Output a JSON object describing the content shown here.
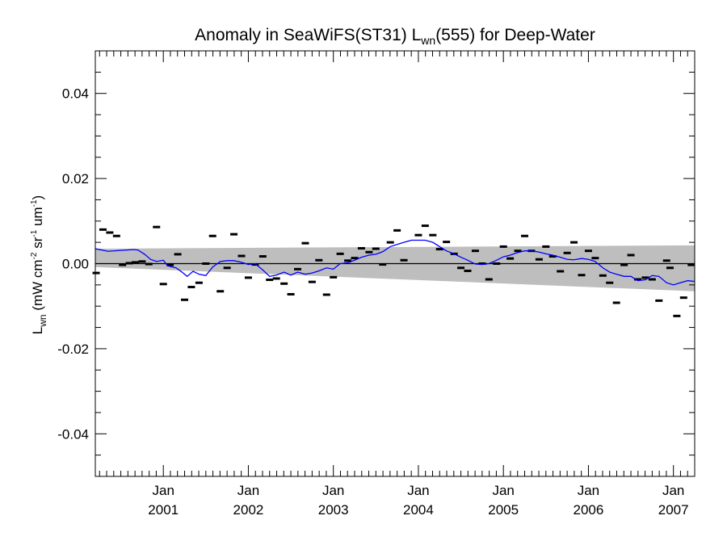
{
  "chart_data": {
    "type": "scatter",
    "title": {
      "prefix": "Anomaly in SeaWiFS(ST31) L",
      "sub": "wn",
      "suffix": "(555) for Deep-Water"
    },
    "ylabel": {
      "prefix": "L",
      "sub": "wn",
      "unit_open": " (mW cm",
      "sup1": "-2",
      "unit_mid": " sr",
      "sup2": "-1",
      "unit_mid2": " um",
      "sup3": "-1",
      "unit_close": ")"
    },
    "xlim": [
      2000.2,
      2007.25
    ],
    "ylim": [
      -0.05,
      0.05
    ],
    "y_ticks": [
      {
        "value": 0.04,
        "label": "0.04"
      },
      {
        "value": 0.02,
        "label": "0.02"
      },
      {
        "value": 0.0,
        "label": "0.00"
      },
      {
        "value": -0.02,
        "label": "-0.02"
      },
      {
        "value": -0.04,
        "label": "-0.04"
      }
    ],
    "x_ticks": [
      {
        "value": 2001.0,
        "month": "Jan",
        "year": "2001"
      },
      {
        "value": 2002.0,
        "month": "Jan",
        "year": "2002"
      },
      {
        "value": 2003.0,
        "month": "Jan",
        "year": "2003"
      },
      {
        "value": 2004.0,
        "month": "Jan",
        "year": "2004"
      },
      {
        "value": 2005.0,
        "month": "Jan",
        "year": "2005"
      },
      {
        "value": 2006.0,
        "month": "Jan",
        "year": "2006"
      },
      {
        "value": 2007.0,
        "month": "Jan",
        "year": "2007"
      }
    ],
    "zero_line": 0.0,
    "band": {
      "upper": [
        [
          2000.2,
          0.0035
        ],
        [
          2007.25,
          0.0043
        ]
      ],
      "lower": [
        [
          2000.2,
          -0.0008
        ],
        [
          2007.25,
          -0.0065
        ]
      ]
    },
    "points": [
      [
        2000.21,
        -0.0022
      ],
      [
        2000.29,
        0.008
      ],
      [
        2000.37,
        0.0073
      ],
      [
        2000.45,
        0.0065
      ],
      [
        2000.52,
        -0.0003
      ],
      [
        2000.6,
        0.0001
      ],
      [
        2000.67,
        0.0003
      ],
      [
        2000.75,
        0.0005
      ],
      [
        2000.83,
        -0.0001
      ],
      [
        2000.92,
        0.0086
      ],
      [
        2001.0,
        -0.0048
      ],
      [
        2001.08,
        -0.0003
      ],
      [
        2001.17,
        0.0022
      ],
      [
        2001.25,
        -0.0085
      ],
      [
        2001.33,
        -0.0055
      ],
      [
        2001.42,
        -0.0045
      ],
      [
        2001.5,
        0.0
      ],
      [
        2001.58,
        0.0065
      ],
      [
        2001.67,
        -0.0065
      ],
      [
        2001.75,
        -0.001
      ],
      [
        2001.83,
        0.0069
      ],
      [
        2001.92,
        0.0018
      ],
      [
        2002.0,
        -0.0033
      ],
      [
        2002.08,
        -0.0002
      ],
      [
        2002.17,
        0.0017
      ],
      [
        2002.25,
        -0.0038
      ],
      [
        2002.33,
        -0.0035
      ],
      [
        2002.42,
        -0.0047
      ],
      [
        2002.5,
        -0.0072
      ],
      [
        2002.58,
        -0.0013
      ],
      [
        2002.67,
        0.0048
      ],
      [
        2002.75,
        -0.0043
      ],
      [
        2002.83,
        0.0008
      ],
      [
        2002.92,
        -0.0073
      ],
      [
        2003.0,
        -0.0032
      ],
      [
        2003.08,
        0.0023
      ],
      [
        2003.17,
        0.0007
      ],
      [
        2003.25,
        0.0013
      ],
      [
        2003.33,
        0.0036
      ],
      [
        2003.42,
        0.0027
      ],
      [
        2003.5,
        0.0035
      ],
      [
        2003.58,
        -0.0002
      ],
      [
        2003.67,
        0.005
      ],
      [
        2003.75,
        0.0078
      ],
      [
        2003.83,
        0.0008
      ],
      [
        2004.0,
        0.0067
      ],
      [
        2004.08,
        0.0089
      ],
      [
        2004.17,
        0.0067
      ],
      [
        2004.25,
        0.0034
      ],
      [
        2004.33,
        0.0051
      ],
      [
        2004.42,
        0.0023
      ],
      [
        2004.5,
        -0.001
      ],
      [
        2004.58,
        -0.0017
      ],
      [
        2004.67,
        0.003
      ],
      [
        2004.75,
        0.0
      ],
      [
        2004.83,
        -0.0037
      ],
      [
        2004.92,
        0.0
      ],
      [
        2005.0,
        0.004
      ],
      [
        2005.08,
        0.0012
      ],
      [
        2005.17,
        0.003
      ],
      [
        2005.25,
        0.0065
      ],
      [
        2005.33,
        0.003
      ],
      [
        2005.42,
        0.001
      ],
      [
        2005.5,
        0.004
      ],
      [
        2005.58,
        0.0017
      ],
      [
        2005.67,
        -0.0018
      ],
      [
        2005.75,
        0.0025
      ],
      [
        2005.83,
        0.005
      ],
      [
        2005.92,
        -0.0027
      ],
      [
        2006.0,
        0.003
      ],
      [
        2006.08,
        0.0013
      ],
      [
        2006.17,
        -0.0028
      ],
      [
        2006.25,
        -0.0045
      ],
      [
        2006.33,
        -0.0092
      ],
      [
        2006.42,
        -0.0003
      ],
      [
        2006.5,
        0.002
      ],
      [
        2006.58,
        -0.0037
      ],
      [
        2006.67,
        -0.0033
      ],
      [
        2006.75,
        -0.0037
      ],
      [
        2006.83,
        -0.0087
      ],
      [
        2006.92,
        0.0007
      ],
      [
        2006.96,
        -0.001
      ],
      [
        2007.04,
        -0.0123
      ],
      [
        2007.12,
        -0.008
      ],
      [
        2007.21,
        -0.0003
      ]
    ],
    "smooth_line": [
      [
        2000.2,
        0.0035
      ],
      [
        2000.35,
        0.0029
      ],
      [
        2000.5,
        0.0031
      ],
      [
        2000.65,
        0.0033
      ],
      [
        2000.7,
        0.0032
      ],
      [
        2000.78,
        0.0022
      ],
      [
        2000.85,
        0.001
      ],
      [
        2000.92,
        0.0005
      ],
      [
        2001.0,
        0.0008
      ],
      [
        2001.05,
        -0.0005
      ],
      [
        2001.15,
        -0.001
      ],
      [
        2001.22,
        -0.002
      ],
      [
        2001.28,
        -0.003
      ],
      [
        2001.35,
        -0.0018
      ],
      [
        2001.42,
        -0.0025
      ],
      [
        2001.5,
        -0.0028
      ],
      [
        2001.58,
        -0.0008
      ],
      [
        2001.67,
        0.0005
      ],
      [
        2001.75,
        0.0007
      ],
      [
        2001.83,
        0.0007
      ],
      [
        2001.92,
        0.0003
      ],
      [
        2002.0,
        -0.0002
      ],
      [
        2002.08,
        0.0
      ],
      [
        2002.17,
        -0.0015
      ],
      [
        2002.25,
        -0.003
      ],
      [
        2002.33,
        -0.0027
      ],
      [
        2002.42,
        -0.002
      ],
      [
        2002.5,
        -0.0027
      ],
      [
        2002.58,
        -0.002
      ],
      [
        2002.67,
        -0.0025
      ],
      [
        2002.75,
        -0.0022
      ],
      [
        2002.83,
        -0.0017
      ],
      [
        2002.92,
        -0.001
      ],
      [
        2003.0,
        -0.0013
      ],
      [
        2003.08,
        0.0
      ],
      [
        2003.17,
        0.0002
      ],
      [
        2003.25,
        0.0008
      ],
      [
        2003.33,
        0.0015
      ],
      [
        2003.42,
        0.002
      ],
      [
        2003.5,
        0.0022
      ],
      [
        2003.58,
        0.0028
      ],
      [
        2003.67,
        0.004
      ],
      [
        2003.75,
        0.0045
      ],
      [
        2003.83,
        0.005
      ],
      [
        2003.92,
        0.0055
      ],
      [
        2004.0,
        0.0055
      ],
      [
        2004.08,
        0.0055
      ],
      [
        2004.17,
        0.005
      ],
      [
        2004.25,
        0.004
      ],
      [
        2004.33,
        0.003
      ],
      [
        2004.42,
        0.0023
      ],
      [
        2004.5,
        0.0015
      ],
      [
        2004.58,
        0.0008
      ],
      [
        2004.67,
        -0.0001
      ],
      [
        2004.75,
        -0.0002
      ],
      [
        2004.83,
        0.0
      ],
      [
        2004.92,
        0.0008
      ],
      [
        2005.0,
        0.0016
      ],
      [
        2005.08,
        0.002
      ],
      [
        2005.17,
        0.0026
      ],
      [
        2005.25,
        0.003
      ],
      [
        2005.33,
        0.003
      ],
      [
        2005.42,
        0.0027
      ],
      [
        2005.5,
        0.0023
      ],
      [
        2005.58,
        0.002
      ],
      [
        2005.67,
        0.0015
      ],
      [
        2005.75,
        0.001
      ],
      [
        2005.83,
        0.0009
      ],
      [
        2005.92,
        0.0012
      ],
      [
        2006.0,
        0.001
      ],
      [
        2006.08,
        0.0005
      ],
      [
        2006.17,
        -0.001
      ],
      [
        2006.25,
        -0.002
      ],
      [
        2006.33,
        -0.0025
      ],
      [
        2006.42,
        -0.003
      ],
      [
        2006.5,
        -0.003
      ],
      [
        2006.58,
        -0.004
      ],
      [
        2006.67,
        -0.0038
      ],
      [
        2006.75,
        -0.0028
      ],
      [
        2006.83,
        -0.003
      ],
      [
        2006.92,
        -0.0045
      ],
      [
        2007.0,
        -0.005
      ],
      [
        2007.08,
        -0.0045
      ],
      [
        2007.17,
        -0.004
      ],
      [
        2007.25,
        -0.0042
      ]
    ],
    "colors": {
      "band": "#bebebe",
      "line": "#0000ff",
      "points": "#000000",
      "axes": "#000000",
      "zero_line": "#000000"
    },
    "grid": false,
    "legend": "none"
  }
}
